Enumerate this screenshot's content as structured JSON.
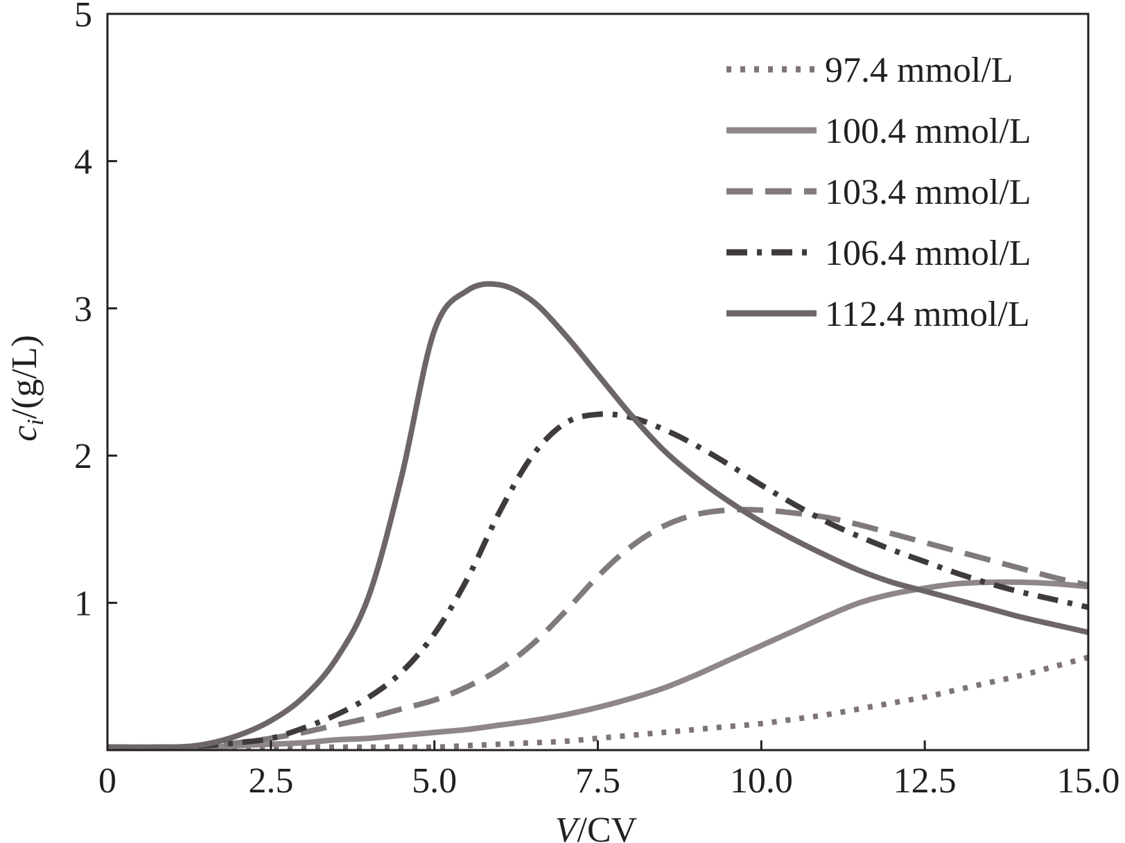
{
  "chart_data": {
    "type": "line",
    "title": "",
    "xlabel": "V/CV",
    "xlabel_italic": "V",
    "xlabel_rest": "/CV",
    "ylabel_italic": "c",
    "ylabel_sub": "i",
    "ylabel_rest": "/(g/L)",
    "xlim": [
      0,
      15
    ],
    "ylim": [
      0,
      5
    ],
    "x_ticks": [
      0,
      2.5,
      5.0,
      7.5,
      10.0,
      12.5,
      15.0
    ],
    "x_tick_labels": [
      "0",
      "2.5",
      "5.0",
      "7.5",
      "10.0",
      "12.5",
      "15.0"
    ],
    "y_ticks": [
      1,
      2,
      3,
      4,
      5
    ],
    "y_tick_labels": [
      "1",
      "2",
      "3",
      "4",
      "5"
    ],
    "grid": false,
    "legend_position": "top-right",
    "x": [
      0,
      1,
      1.5,
      2,
      2.5,
      3,
      3.5,
      4,
      4.5,
      5,
      5.5,
      6,
      6.5,
      7,
      7.5,
      8,
      8.5,
      9,
      9.5,
      10,
      10.5,
      11,
      11.5,
      12,
      12.5,
      13,
      13.5,
      14,
      14.5,
      15
    ],
    "series": [
      {
        "name": "97.4 mmol/L",
        "style": "dotted",
        "color": "#7e7476",
        "values": [
          0.02,
          0.02,
          0.02,
          0.02,
          0.02,
          0.02,
          0.02,
          0.02,
          0.02,
          0.02,
          0.03,
          0.04,
          0.05,
          0.06,
          0.08,
          0.1,
          0.12,
          0.14,
          0.16,
          0.18,
          0.21,
          0.24,
          0.28,
          0.32,
          0.36,
          0.41,
          0.46,
          0.51,
          0.57,
          0.63
        ]
      },
      {
        "name": "100.4 mmol/L",
        "style": "solid",
        "color": "#8e8688",
        "values": [
          0.02,
          0.02,
          0.02,
          0.03,
          0.04,
          0.05,
          0.07,
          0.08,
          0.1,
          0.12,
          0.14,
          0.17,
          0.2,
          0.24,
          0.29,
          0.35,
          0.42,
          0.51,
          0.61,
          0.71,
          0.81,
          0.91,
          1.0,
          1.06,
          1.1,
          1.13,
          1.14,
          1.14,
          1.13,
          1.11
        ]
      },
      {
        "name": "103.4 mmol/L",
        "style": "dashed",
        "color": "#817a7c",
        "values": [
          0.02,
          0.02,
          0.03,
          0.05,
          0.08,
          0.12,
          0.17,
          0.22,
          0.28,
          0.34,
          0.43,
          0.55,
          0.72,
          0.94,
          1.18,
          1.38,
          1.52,
          1.6,
          1.63,
          1.63,
          1.61,
          1.58,
          1.53,
          1.47,
          1.41,
          1.35,
          1.29,
          1.23,
          1.17,
          1.12
        ]
      },
      {
        "name": "106.4 mmol/L",
        "style": "dashdot",
        "color": "#3f3a3b",
        "values": [
          0.02,
          0.02,
          0.03,
          0.05,
          0.08,
          0.15,
          0.24,
          0.36,
          0.53,
          0.79,
          1.16,
          1.62,
          2.0,
          2.22,
          2.28,
          2.26,
          2.18,
          2.07,
          1.94,
          1.8,
          1.67,
          1.55,
          1.45,
          1.36,
          1.28,
          1.2,
          1.13,
          1.07,
          1.02,
          0.97
        ]
      },
      {
        "name": "112.4 mmol/L",
        "style": "solid",
        "color": "#6d6567",
        "values": [
          0.02,
          0.02,
          0.04,
          0.1,
          0.2,
          0.36,
          0.62,
          1.05,
          1.86,
          2.85,
          3.12,
          3.16,
          3.05,
          2.82,
          2.55,
          2.28,
          2.04,
          1.85,
          1.69,
          1.55,
          1.43,
          1.32,
          1.22,
          1.14,
          1.08,
          1.02,
          0.96,
          0.9,
          0.85,
          0.8
        ]
      }
    ]
  }
}
